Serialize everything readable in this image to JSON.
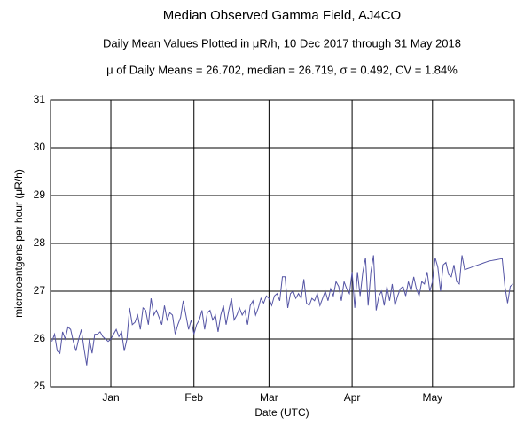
{
  "chart_data": {
    "type": "line",
    "title": "Median Observed Gamma Field, AJ4CO",
    "subtitle": "Daily Mean Values Plotted in μR/h, 10 Dec 2017 through 31 May 2018",
    "annotation": "μ of Daily Means = 26.702,   median = 26.719,   σ = 0.492,   CV = 1.84%",
    "x_label": "Date (UTC)",
    "y_label": "microroentgens per hour (μR/h)",
    "categories": [
      null,
      null,
      null,
      null,
      null,
      null,
      null,
      null,
      null,
      null,
      null,
      null,
      null,
      null,
      null,
      null,
      null,
      null,
      null,
      null,
      null,
      null,
      "Jan",
      null,
      null,
      null,
      null,
      null,
      null,
      null,
      null,
      null,
      null,
      null,
      null,
      null,
      null,
      null,
      null,
      null,
      null,
      null,
      null,
      null,
      null,
      null,
      null,
      null,
      null,
      null,
      null,
      null,
      null,
      "Feb",
      null,
      null,
      null,
      null,
      null,
      null,
      null,
      null,
      null,
      null,
      null,
      null,
      null,
      null,
      null,
      null,
      null,
      null,
      null,
      null,
      null,
      null,
      null,
      null,
      null,
      null,
      null,
      "Mar",
      null,
      null,
      null,
      null,
      null,
      null,
      null,
      null,
      null,
      null,
      null,
      null,
      null,
      null,
      null,
      null,
      null,
      null,
      null,
      null,
      null,
      null,
      null,
      null,
      null,
      null,
      null,
      null,
      null,
      null,
      "Apr",
      null,
      null,
      null,
      null,
      null,
      null,
      null,
      null,
      null,
      null,
      null,
      null,
      null,
      null,
      null,
      null,
      null,
      null,
      null,
      null,
      null,
      null,
      null,
      null,
      null,
      null,
      null,
      null,
      null,
      "May",
      null,
      null,
      null,
      null,
      null,
      null,
      null,
      null,
      null,
      null,
      null,
      null,
      null,
      null,
      null,
      null,
      null,
      null,
      null,
      null,
      null,
      null,
      null,
      null,
      null,
      null,
      null,
      null,
      null,
      null
    ],
    "series": [
      {
        "name": "Daily mean",
        "color": "#5555a5",
        "values": [
          25.95,
          26.1,
          25.75,
          25.7,
          26.15,
          26.0,
          26.25,
          26.2,
          25.95,
          25.75,
          26.0,
          26.2,
          25.8,
          25.45,
          26.0,
          25.7,
          26.1,
          26.1,
          26.15,
          26.05,
          26.0,
          25.95,
          26.0,
          26.1,
          26.2,
          26.05,
          26.15,
          25.75,
          26.0,
          26.65,
          26.3,
          26.35,
          26.5,
          26.2,
          26.65,
          26.6,
          26.3,
          26.85,
          26.5,
          26.6,
          26.45,
          26.3,
          26.7,
          26.4,
          26.55,
          26.5,
          26.1,
          26.3,
          26.45,
          26.8,
          26.5,
          26.2,
          26.4,
          26.1,
          26.3,
          26.4,
          26.6,
          26.2,
          26.55,
          26.6,
          26.4,
          26.5,
          26.15,
          26.5,
          26.7,
          26.3,
          26.6,
          26.85,
          26.4,
          26.5,
          26.65,
          26.5,
          26.6,
          26.3,
          26.7,
          26.8,
          26.5,
          26.65,
          26.85,
          26.75,
          26.9,
          26.85,
          26.7,
          26.9,
          26.95,
          26.8,
          27.3,
          27.3,
          26.65,
          26.95,
          27.0,
          26.85,
          26.95,
          26.85,
          27.25,
          26.75,
          26.7,
          26.85,
          26.8,
          26.95,
          26.7,
          26.85,
          27.0,
          26.8,
          27.05,
          26.9,
          27.2,
          27.1,
          26.8,
          27.2,
          27.05,
          26.95,
          27.4,
          26.65,
          27.4,
          26.9,
          27.4,
          27.7,
          26.7,
          27.4,
          27.75,
          26.6,
          26.9,
          27.0,
          26.7,
          27.1,
          26.8,
          27.15,
          26.7,
          26.9,
          27.05,
          27.1,
          26.9,
          27.2,
          27.0,
          27.3,
          27.05,
          26.9,
          27.2,
          27.15,
          27.4,
          27.0,
          27.2,
          27.7,
          27.5,
          27.0,
          27.55,
          27.6,
          27.35,
          27.3,
          27.55,
          27.2,
          27.15,
          27.75,
          27.45,
          27.47,
          27.49,
          27.51,
          27.53,
          27.55,
          27.57,
          27.59,
          27.61,
          27.63,
          27.64,
          27.65,
          27.66,
          27.67,
          27.68,
          27.1,
          26.75,
          27.1,
          27.15
        ]
      }
    ],
    "ylim": [
      25,
      31
    ],
    "yticks": [
      25,
      26,
      27,
      28,
      29,
      30,
      31
    ],
    "grid": true
  }
}
